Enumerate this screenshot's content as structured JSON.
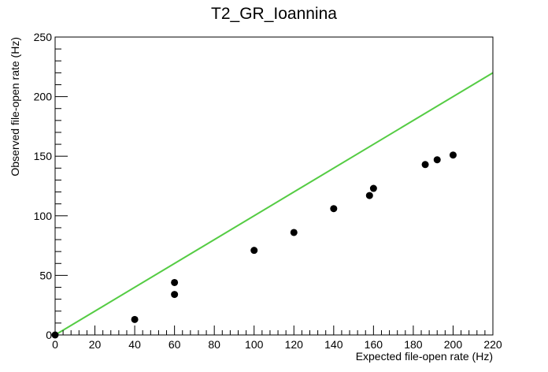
{
  "chart_data": {
    "type": "scatter",
    "title": "T2_GR_Ioannina",
    "xlabel": "Expected file-open rate (Hz)",
    "ylabel": "Observed file-open rate (Hz)",
    "xlim": [
      0,
      220
    ],
    "ylim": [
      0,
      250
    ],
    "x_ticks": [
      0,
      20,
      40,
      60,
      80,
      100,
      120,
      140,
      160,
      180,
      200,
      220
    ],
    "y_ticks": [
      0,
      50,
      100,
      150,
      200,
      250
    ],
    "grid": false,
    "reference_line": {
      "from": [
        0,
        0
      ],
      "to": [
        220,
        220
      ],
      "color": "#55cc44"
    },
    "marker_color": "#000000",
    "points": [
      {
        "x": 0,
        "y": 0
      },
      {
        "x": 40,
        "y": 13
      },
      {
        "x": 60,
        "y": 34
      },
      {
        "x": 60,
        "y": 44
      },
      {
        "x": 100,
        "y": 71
      },
      {
        "x": 120,
        "y": 86
      },
      {
        "x": 140,
        "y": 106
      },
      {
        "x": 158,
        "y": 117
      },
      {
        "x": 160,
        "y": 123
      },
      {
        "x": 186,
        "y": 143
      },
      {
        "x": 192,
        "y": 147
      },
      {
        "x": 200,
        "y": 151
      }
    ]
  }
}
